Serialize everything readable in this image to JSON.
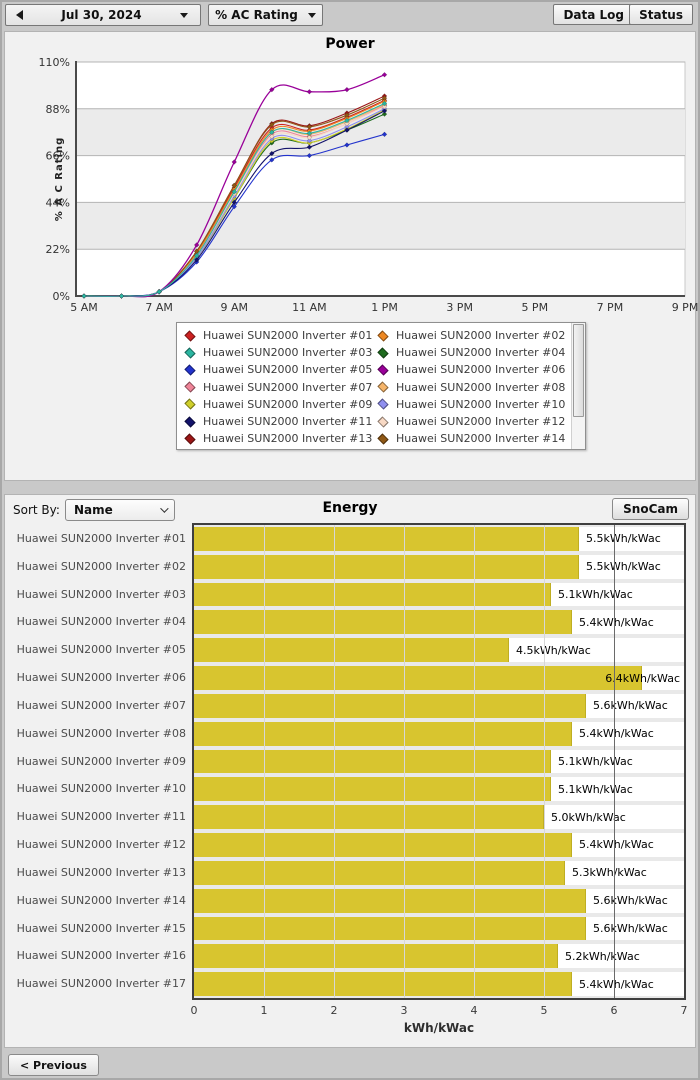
{
  "toolbar": {
    "date_label": "Jul 30, 2024",
    "metric_label": "% AC Rating",
    "data_log_label": "Data Log",
    "status_label": "Status"
  },
  "power": {
    "title": "Power"
  },
  "energy": {
    "sort_by_label": "Sort By:",
    "sort_value": "Name",
    "title": "Energy",
    "snocam_label": "SnoCam"
  },
  "footer": {
    "previous_label": "< Previous"
  },
  "chart_data": [
    {
      "type": "line",
      "title": "Power",
      "ylabel": "% A C Rating",
      "x_hours": [
        5,
        6,
        7,
        8,
        9,
        10,
        11,
        12,
        13
      ],
      "x_axis_range_hours": [
        5,
        21
      ],
      "x_tick_hours": [
        5,
        7,
        9,
        11,
        13,
        15,
        17,
        19,
        21
      ],
      "x_tick_labels": [
        "5 AM",
        "7 AM",
        "9 AM",
        "11 AM",
        "1 PM",
        "3 PM",
        "5 PM",
        "7 PM",
        "9 PM"
      ],
      "ylim": [
        0,
        110
      ],
      "y_ticks": [
        0,
        22,
        44,
        66,
        88,
        110
      ],
      "y_tick_labels": [
        "0%",
        "22%",
        "44%",
        "66%",
        "88%",
        "110%"
      ],
      "grid": true,
      "band_fill": "#ebebeb",
      "legend_position": "bottom",
      "series": [
        {
          "name": "Huawei SUN2000 Inverter #01",
          "color": "#cc2222",
          "values": [
            0,
            0,
            2,
            20,
            51,
            79,
            78,
            84,
            92
          ]
        },
        {
          "name": "Huawei SUN2000 Inverter #02",
          "color": "#ee8822",
          "values": [
            0,
            0,
            2,
            20,
            50,
            78,
            77.5,
            83.5,
            91.5
          ]
        },
        {
          "name": "Huawei SUN2000 Inverter #03",
          "color": "#2ab5a0",
          "values": [
            0,
            0,
            2,
            19,
            49,
            77,
            76.5,
            82.5,
            90.5
          ]
        },
        {
          "name": "Huawei SUN2000 Inverter #04",
          "color": "#1e6b1e",
          "values": [
            0,
            0,
            2,
            18,
            46,
            72,
            72,
            78,
            85.5
          ]
        },
        {
          "name": "Huawei SUN2000 Inverter #05",
          "color": "#2233cc",
          "values": [
            0,
            0,
            2,
            16,
            42,
            64,
            66,
            71,
            76
          ]
        },
        {
          "name": "Huawei SUN2000 Inverter #06",
          "color": "#990099",
          "values": [
            0,
            0,
            2,
            24,
            63,
            97,
            96,
            97,
            104
          ]
        },
        {
          "name": "Huawei SUN2000 Inverter #07",
          "color": "#ef8498",
          "values": [
            0,
            0,
            2,
            19,
            48,
            76,
            75,
            81,
            89.5
          ]
        },
        {
          "name": "Huawei SUN2000 Inverter #08",
          "color": "#f5b469",
          "values": [
            0,
            0,
            2,
            19,
            49,
            77,
            76,
            82,
            90
          ]
        },
        {
          "name": "Huawei SUN2000 Inverter #09",
          "color": "#cfcf2a",
          "values": [
            0,
            0,
            2,
            18,
            46,
            73,
            72,
            78.5,
            87.5
          ]
        },
        {
          "name": "Huawei SUN2000 Inverter #10",
          "color": "#8f8fef",
          "values": [
            0,
            0,
            2,
            18,
            47,
            74,
            73,
            79.5,
            88
          ]
        },
        {
          "name": "Huawei SUN2000 Inverter #11",
          "color": "#13136b",
          "values": [
            0,
            0,
            2,
            17,
            44,
            67,
            70,
            78,
            87
          ]
        },
        {
          "name": "Huawei SUN2000 Inverter #12",
          "color": "#f8d9c4",
          "values": [
            0,
            0,
            2,
            19,
            48,
            75,
            74.5,
            81,
            89
          ]
        },
        {
          "name": "Huawei SUN2000 Inverter #13",
          "color": "#9b1616",
          "values": [
            0,
            0,
            2,
            21,
            52,
            81,
            80,
            86,
            94
          ]
        },
        {
          "name": "Huawei SUN2000 Inverter #14",
          "color": "#8f5815",
          "values": [
            0,
            0,
            2,
            21,
            52,
            80.5,
            79.5,
            85,
            93
          ]
        }
      ]
    },
    {
      "type": "bar",
      "orientation": "horizontal",
      "title": "Energy",
      "xlabel": "kWh/kWac",
      "xlim": [
        0,
        7
      ],
      "x_ticks": [
        0,
        1,
        2,
        3,
        4,
        5,
        6,
        7
      ],
      "reference_line_x": 6,
      "bar_color": "#d8c52f",
      "categories": [
        "Huawei SUN2000 Inverter #01",
        "Huawei SUN2000 Inverter #02",
        "Huawei SUN2000 Inverter #03",
        "Huawei SUN2000 Inverter #04",
        "Huawei SUN2000 Inverter #05",
        "Huawei SUN2000 Inverter #06",
        "Huawei SUN2000 Inverter #07",
        "Huawei SUN2000 Inverter #08",
        "Huawei SUN2000 Inverter #09",
        "Huawei SUN2000 Inverter #10",
        "Huawei SUN2000 Inverter #11",
        "Huawei SUN2000 Inverter #12",
        "Huawei SUN2000 Inverter #13",
        "Huawei SUN2000 Inverter #14",
        "Huawei SUN2000 Inverter #15",
        "Huawei SUN2000 Inverter #16",
        "Huawei SUN2000 Inverter #17"
      ],
      "values": [
        5.5,
        5.5,
        5.1,
        5.4,
        4.5,
        6.4,
        5.6,
        5.4,
        5.1,
        5.1,
        5.0,
        5.4,
        5.3,
        5.6,
        5.6,
        5.2,
        5.4
      ],
      "value_labels": [
        "5.5kWh/kWac",
        "5.5kWh/kWac",
        "5.1kWh/kWac",
        "5.4kWh/kWac",
        "4.5kWh/kWac",
        "6.4kWh/kWac",
        "5.6kWh/kWac",
        "5.4kWh/kWac",
        "5.1kWh/kWac",
        "5.1kWh/kWac",
        "5.0kWh/kWac",
        "5.4kWh/kWac",
        "5.3kWh/kWac",
        "5.6kWh/kWac",
        "5.6kWh/kWac",
        "5.2kWh/kWac",
        "5.4kWh/kWac"
      ]
    }
  ]
}
